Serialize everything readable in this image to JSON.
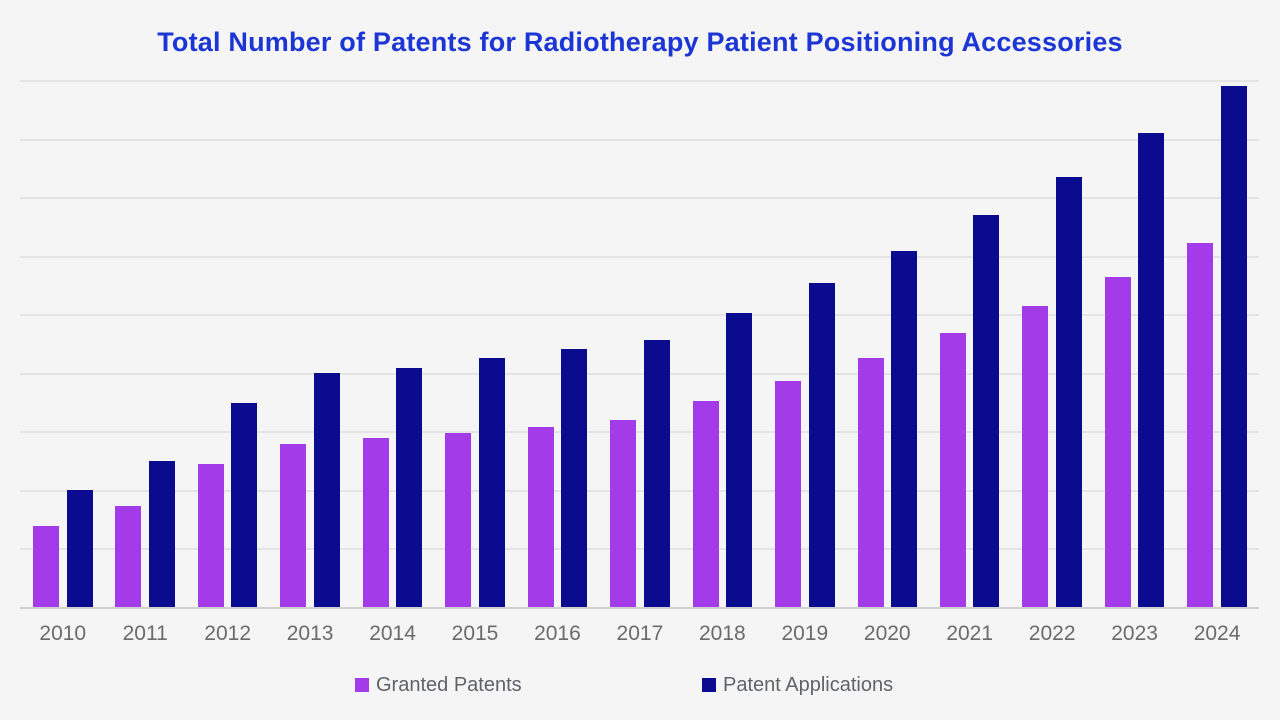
{
  "title": {
    "text": "Total Number of Patents for Radiotherapy Patient Positioning Accessories"
  },
  "colors": {
    "title": "#1B36D4",
    "background": "#F5F5F5",
    "gridline": "#E4E4E4",
    "axis_line": "#CFCFCF",
    "x_label": "#6B6B6B",
    "legend_text": "#5F6368",
    "granted_patents": "#A33BE8",
    "patent_applications": "#0B0B8F"
  },
  "chart_data": {
    "type": "bar",
    "title": "Total Number of Patents for Radiotherapy Patient Positioning Accessories",
    "xlabel": "",
    "ylabel": "",
    "categories": [
      "2010",
      "2011",
      "2012",
      "2013",
      "2014",
      "2015",
      "2016",
      "2017",
      "2018",
      "2019",
      "2020",
      "2021",
      "2022",
      "2023",
      "2024"
    ],
    "series": [
      {
        "name": "Granted Patents",
        "color": "#A33BE8",
        "values": [
          69,
          86,
          122,
          139,
          144,
          149,
          154,
          160,
          176,
          193,
          213,
          234,
          257,
          282,
          311
        ]
      },
      {
        "name": "Patent Applications",
        "color": "#0B0B8F",
        "values": [
          100,
          125,
          174,
          200,
          204,
          213,
          220,
          228,
          251,
          277,
          304,
          335,
          367,
          405,
          445
        ]
      }
    ],
    "ylim": [
      0,
      450
    ],
    "y_gridline_step": 50,
    "y_axis_labels_visible": false,
    "grid": true,
    "legend_position": "bottom"
  }
}
